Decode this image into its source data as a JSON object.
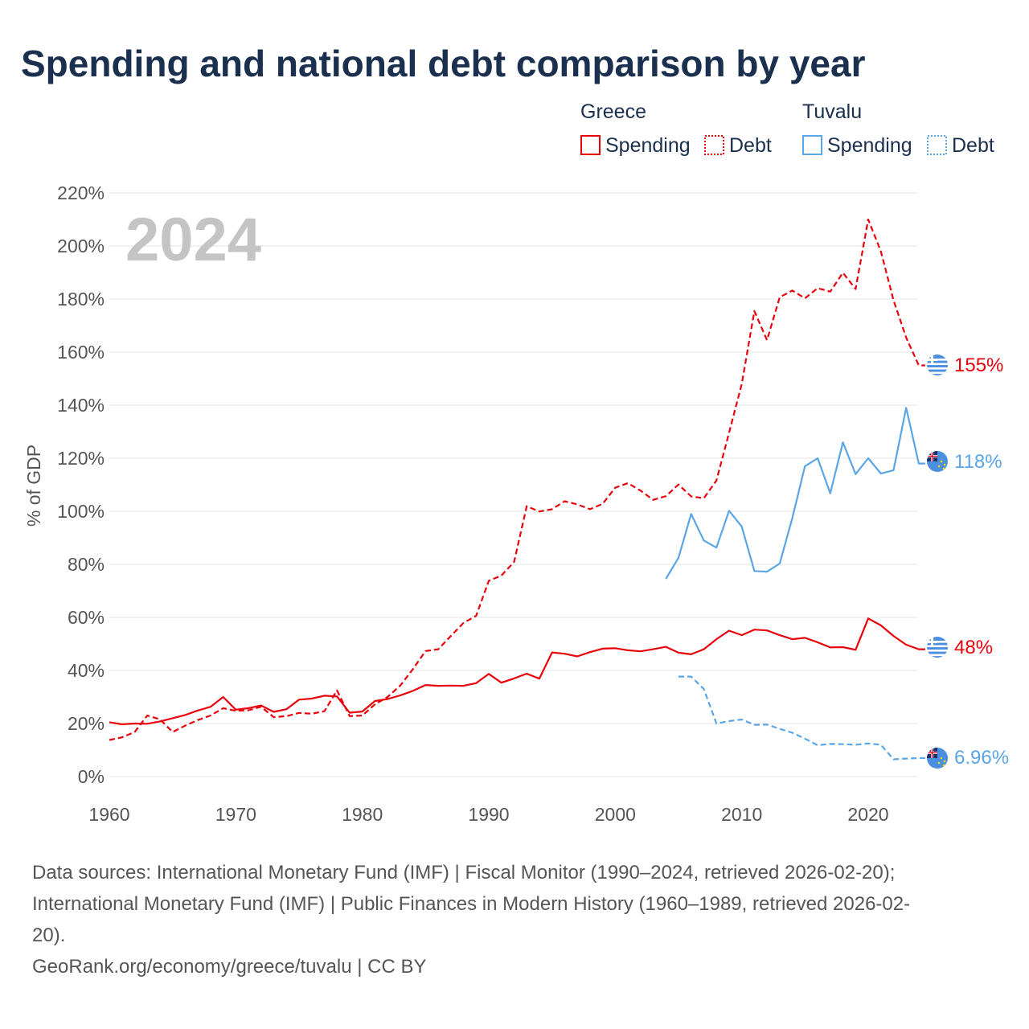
{
  "title": "Spending and national debt comparison by year",
  "year_display": "2024",
  "legend": {
    "groups": [
      {
        "name": "Greece",
        "items": [
          {
            "label": "Spending",
            "style": "solid"
          },
          {
            "label": "Debt",
            "style": "dotted"
          }
        ],
        "color": "#e8000b"
      },
      {
        "name": "Tuvalu",
        "items": [
          {
            "label": "Spending",
            "style": "solid"
          },
          {
            "label": "Debt",
            "style": "dotted"
          }
        ],
        "color": "#5aa5e6"
      }
    ]
  },
  "sources": {
    "line1": "Data sources: International Monetary Fund (IMF) | Fiscal Monitor (1990–2024, retrieved 2026-02-20);",
    "line2": "International Monetary Fund (IMF) | Public Finances in Modern History (1960–1989, retrieved 2026-02-",
    "line3": "20).",
    "line4": "GeoRank.org/economy/greece/tuvalu | CC BY"
  },
  "chart_data": {
    "type": "line",
    "ylabel": "% of GDP",
    "xlabel": "",
    "xlim": [
      1960,
      2025
    ],
    "ylim": [
      0,
      220
    ],
    "x_ticks": [
      1960,
      1970,
      1980,
      1990,
      2000,
      2010,
      2020
    ],
    "y_ticks": [
      0,
      20,
      40,
      60,
      80,
      100,
      120,
      140,
      160,
      180,
      200,
      220
    ],
    "y_tick_labels": [
      "0%",
      "20%",
      "40%",
      "60%",
      "80%",
      "100%",
      "120%",
      "140%",
      "160%",
      "180%",
      "200%",
      "220%"
    ],
    "grid": true,
    "series": [
      {
        "name": "Greece Spending",
        "country": "Greece",
        "color": "#e8000b",
        "dash": "solid",
        "end_label": "48%",
        "x": [
          1960,
          1961,
          1962,
          1963,
          1964,
          1965,
          1966,
          1967,
          1968,
          1969,
          1970,
          1971,
          1972,
          1973,
          1974,
          1975,
          1976,
          1977,
          1978,
          1979,
          1980,
          1981,
          1982,
          1983,
          1984,
          1985,
          1986,
          1987,
          1988,
          1989,
          1990,
          1991,
          1992,
          1993,
          1994,
          1995,
          1996,
          1997,
          1998,
          1999,
          2000,
          2001,
          2002,
          2003,
          2004,
          2005,
          2006,
          2007,
          2008,
          2009,
          2010,
          2011,
          2012,
          2013,
          2014,
          2015,
          2016,
          2017,
          2018,
          2019,
          2020,
          2021,
          2022,
          2023,
          2024
        ],
        "values": [
          20.5,
          19.7,
          20.0,
          19.9,
          20.8,
          22.0,
          23.2,
          24.9,
          26.3,
          30.0,
          25.2,
          25.8,
          26.8,
          24.4,
          25.4,
          29.0,
          29.4,
          30.5,
          30.2,
          24.1,
          24.5,
          28.5,
          29.2,
          30.6,
          32.3,
          34.5,
          34.2,
          34.3,
          34.2,
          35.2,
          38.7,
          35.4,
          37.0,
          38.8,
          36.9,
          46.8,
          46.3,
          45.3,
          46.9,
          48.2,
          48.4,
          47.6,
          47.2,
          48.0,
          48.9,
          46.7,
          46.1,
          48.0,
          51.8,
          55.0,
          53.3,
          55.4,
          55.1,
          53.3,
          51.8,
          52.3,
          50.6,
          48.7,
          48.8,
          47.8,
          59.6,
          57.0,
          53.0,
          49.7,
          48.0
        ]
      },
      {
        "name": "Greece Debt",
        "country": "Greece",
        "color": "#e8000b",
        "dash": "dashed",
        "end_label": "155%",
        "x": [
          1960,
          1961,
          1962,
          1963,
          1964,
          1965,
          1966,
          1967,
          1968,
          1969,
          1970,
          1971,
          1972,
          1973,
          1974,
          1975,
          1976,
          1977,
          1978,
          1979,
          1980,
          1981,
          1982,
          1983,
          1984,
          1985,
          1986,
          1987,
          1988,
          1989,
          1990,
          1991,
          1992,
          1993,
          1994,
          1995,
          1996,
          1997,
          1998,
          1999,
          2000,
          2001,
          2002,
          2003,
          2004,
          2005,
          2006,
          2007,
          2008,
          2009,
          2010,
          2011,
          2012,
          2013,
          2014,
          2015,
          2016,
          2017,
          2018,
          2019,
          2020,
          2021,
          2022,
          2023,
          2024
        ],
        "values": [
          13.8,
          14.8,
          16.8,
          23.0,
          21.6,
          16.8,
          19.2,
          21.3,
          23.0,
          25.8,
          24.8,
          25.0,
          26.3,
          22.4,
          22.8,
          24.0,
          23.7,
          24.6,
          32.5,
          22.8,
          23.0,
          27.2,
          30.0,
          34.3,
          40.5,
          47.3,
          48.0,
          53.0,
          57.9,
          60.6,
          73.8,
          75.8,
          80.9,
          101.9,
          99.9,
          100.8,
          103.8,
          102.6,
          100.8,
          102.8,
          108.9,
          110.6,
          107.8,
          104.3,
          105.7,
          110.1,
          105.6,
          104.9,
          111.6,
          129.6,
          148.0,
          175.5,
          164.5,
          180.7,
          183.2,
          180.3,
          184.1,
          182.8,
          189.9,
          183.8,
          210.0,
          198.0,
          179.5,
          165.5,
          155.0
        ]
      },
      {
        "name": "Tuvalu Spending",
        "country": "Tuvalu",
        "color": "#5aa5e6",
        "dash": "solid",
        "end_label": "118%",
        "x": [
          2004,
          2005,
          2006,
          2007,
          2008,
          2009,
          2010,
          2011,
          2012,
          2013,
          2014,
          2015,
          2016,
          2017,
          2018,
          2019,
          2020,
          2021,
          2022,
          2023,
          2024
        ],
        "values": [
          74.5,
          82.5,
          99.0,
          89.0,
          86.3,
          100.2,
          94.2,
          77.5,
          77.2,
          80.3,
          97.5,
          117.0,
          120.0,
          106.8,
          126.0,
          114.0,
          120.0,
          114.2,
          115.5,
          139.0,
          118.0
        ]
      },
      {
        "name": "Tuvalu Debt",
        "country": "Tuvalu",
        "color": "#5aa5e6",
        "dash": "dashed",
        "end_label": "6.96%",
        "x": [
          2005,
          2006,
          2007,
          2008,
          2009,
          2010,
          2011,
          2012,
          2013,
          2014,
          2015,
          2016,
          2017,
          2018,
          2019,
          2020,
          2021,
          2022,
          2023,
          2024
        ],
        "values": [
          37.7,
          37.7,
          33.0,
          20.0,
          20.9,
          21.5,
          19.5,
          19.6,
          18.0,
          16.5,
          14.3,
          11.8,
          12.3,
          12.2,
          12.0,
          12.5,
          12.0,
          6.5,
          6.8,
          6.96
        ]
      }
    ]
  }
}
